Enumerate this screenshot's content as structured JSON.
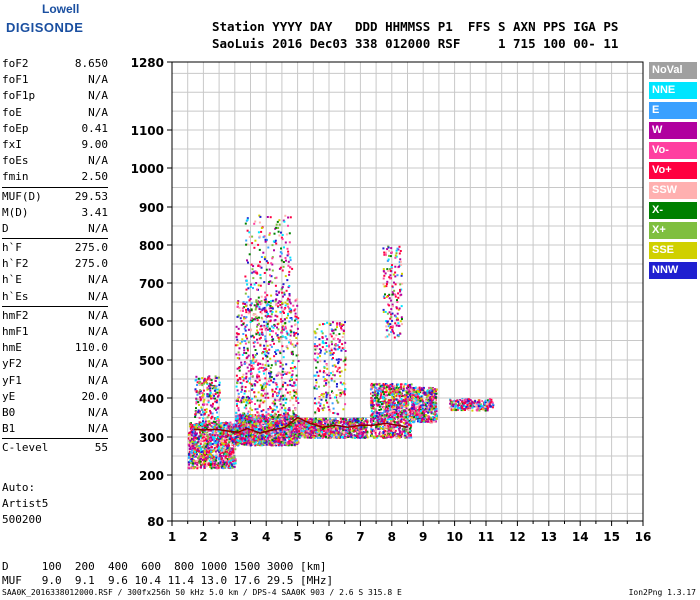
{
  "logo": {
    "line1": "Lowell",
    "line2": "DIGISONDE"
  },
  "header": {
    "line1": "Station YYYY DAY   DDD HHMMSS P1  FFS S AXN PPS IGA PS",
    "line2": "SaoLuis 2016 Dec03 338 012000 RSF     1 715 100 00- 11"
  },
  "params": {
    "group1": [
      {
        "k": "foF2",
        "v": "8.650"
      },
      {
        "k": "foF1",
        "v": "N/A"
      },
      {
        "k": "foF1p",
        "v": "N/A"
      },
      {
        "k": "foE",
        "v": "N/A"
      },
      {
        "k": "foEp",
        "v": "0.41"
      },
      {
        "k": "fxI",
        "v": "9.00"
      },
      {
        "k": "foEs",
        "v": "N/A"
      },
      {
        "k": "fmin",
        "v": "2.50"
      }
    ],
    "group2": [
      {
        "k": "MUF(D)",
        "v": "29.53"
      },
      {
        "k": "M(D)",
        "v": "3.41"
      },
      {
        "k": "D",
        "v": "N/A"
      }
    ],
    "group3": [
      {
        "k": "h`F",
        "v": "275.0"
      },
      {
        "k": "h`F2",
        "v": "275.0"
      },
      {
        "k": "h`E",
        "v": "N/A"
      },
      {
        "k": "h`Es",
        "v": "N/A"
      }
    ],
    "group4": [
      {
        "k": "hmF2",
        "v": "N/A"
      },
      {
        "k": "hmF1",
        "v": "N/A"
      },
      {
        "k": "hmE",
        "v": "110.0"
      },
      {
        "k": "yF2",
        "v": "N/A"
      },
      {
        "k": "yF1",
        "v": "N/A"
      },
      {
        "k": "yE",
        "v": "20.0"
      },
      {
        "k": "B0",
        "v": "N/A"
      },
      {
        "k": "B1",
        "v": "N/A"
      }
    ],
    "group5": [
      {
        "k": "C-level",
        "v": "55"
      }
    ]
  },
  "auto": {
    "line1": "Auto:",
    "line2": "Artist5",
    "line3": "500200"
  },
  "legend": [
    {
      "label": "NoVal",
      "color": "#a0a0a0"
    },
    {
      "label": "NNE",
      "color": "#00e5ff"
    },
    {
      "label": "E",
      "color": "#3aa0ff"
    },
    {
      "label": "W",
      "color": "#b0009e"
    },
    {
      "label": "Vo-",
      "color": "#ff3fa0"
    },
    {
      "label": "Vo+",
      "color": "#ff0040"
    },
    {
      "label": "SSW",
      "color": "#ffb0b0"
    },
    {
      "label": "X-",
      "color": "#008000"
    },
    {
      "label": "X+",
      "color": "#7fbf3f"
    },
    {
      "label": "SSE",
      "color": "#d0d000"
    },
    {
      "label": "NNW",
      "color": "#2020d0"
    }
  ],
  "bottom": {
    "line1": "D     100  200  400  600  800 1000 1500 3000 [km]",
    "line2": "MUF   9.0  9.1  9.6 10.4 11.4 13.0 17.6 29.5 [MHz]"
  },
  "footer": "SAA0K_2016338012000.RSF / 300fx256h 50 kHz 5.0 km / DPS-4 SAA0K 903 / 2.6 S 315.8 E",
  "version": "Ion2Png 1.3.17",
  "chart_data": {
    "type": "scatter",
    "xlim": [
      1,
      16
    ],
    "ylim": [
      80,
      1280
    ],
    "y_scale": "nonlinear",
    "xticks": [
      "1",
      "2",
      "3",
      "4",
      "5",
      "6",
      "7",
      "8",
      "9",
      "10",
      "11",
      "12",
      "13",
      "14",
      "15",
      "16"
    ],
    "yticks": [
      "80",
      "200",
      "300",
      "400",
      "500",
      "600",
      "700",
      "800",
      "900",
      "1000",
      "1100",
      "1280"
    ],
    "grid": true,
    "trace": {
      "x": [
        1.7,
        2.0,
        2.4,
        2.8,
        3.1,
        3.4,
        3.8,
        4.2,
        4.6,
        5.0,
        5.4,
        5.8,
        6.2,
        6.6,
        7.0,
        7.4,
        7.8,
        8.2,
        8.5
      ],
      "y": [
        320,
        318,
        320,
        315,
        312,
        322,
        310,
        318,
        325,
        350,
        335,
        325,
        330,
        325,
        330,
        330,
        335,
        330,
        325
      ],
      "color": "#8b0000"
    }
  }
}
